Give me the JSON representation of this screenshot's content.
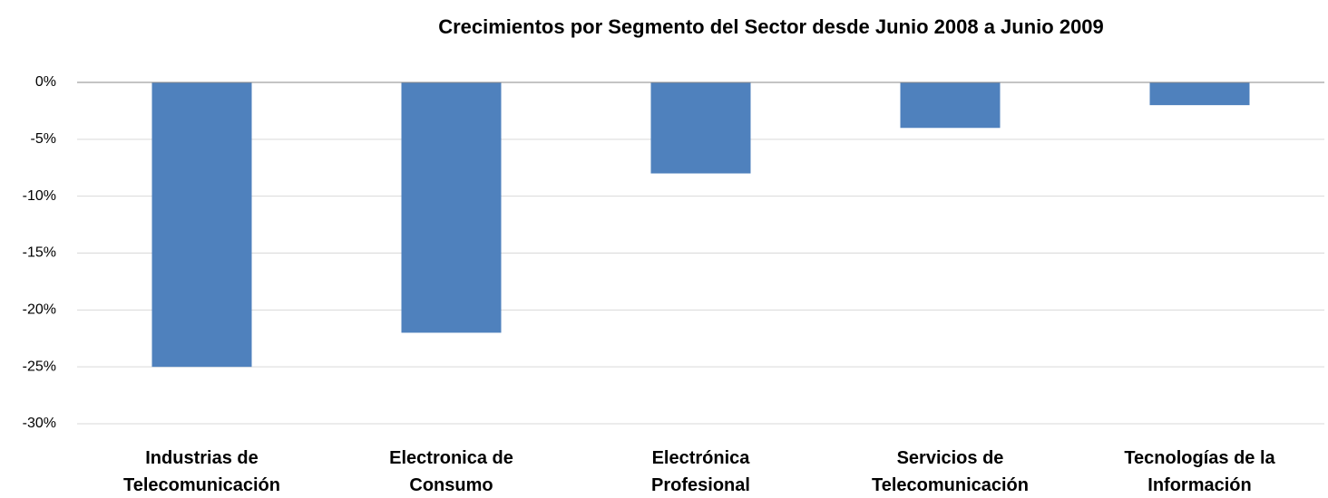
{
  "chart_data": {
    "type": "bar",
    "title": "Crecimientos por Segmento del Sector desde Junio 2008 a Junio 2009",
    "categories": [
      "Industrias de Telecomunicación",
      "Electronica de Consumo",
      "Electrónica Profesional",
      "Servicios de Telecomunicación",
      "Tecnologías de la Información"
    ],
    "values": [
      -25,
      -22,
      -8,
      -4,
      -2
    ],
    "color": "#4f81bd",
    "ylim": [
      -30,
      0
    ],
    "yticks": [
      {
        "value": 0,
        "label": "0%"
      },
      {
        "value": -5,
        "label": "-5%"
      },
      {
        "value": -10,
        "label": "-10%"
      },
      {
        "value": -15,
        "label": "-15%"
      },
      {
        "value": -20,
        "label": "-20%"
      },
      {
        "value": -25,
        "label": "-25%"
      },
      {
        "value": -30,
        "label": "-30%"
      }
    ],
    "grid": true
  }
}
